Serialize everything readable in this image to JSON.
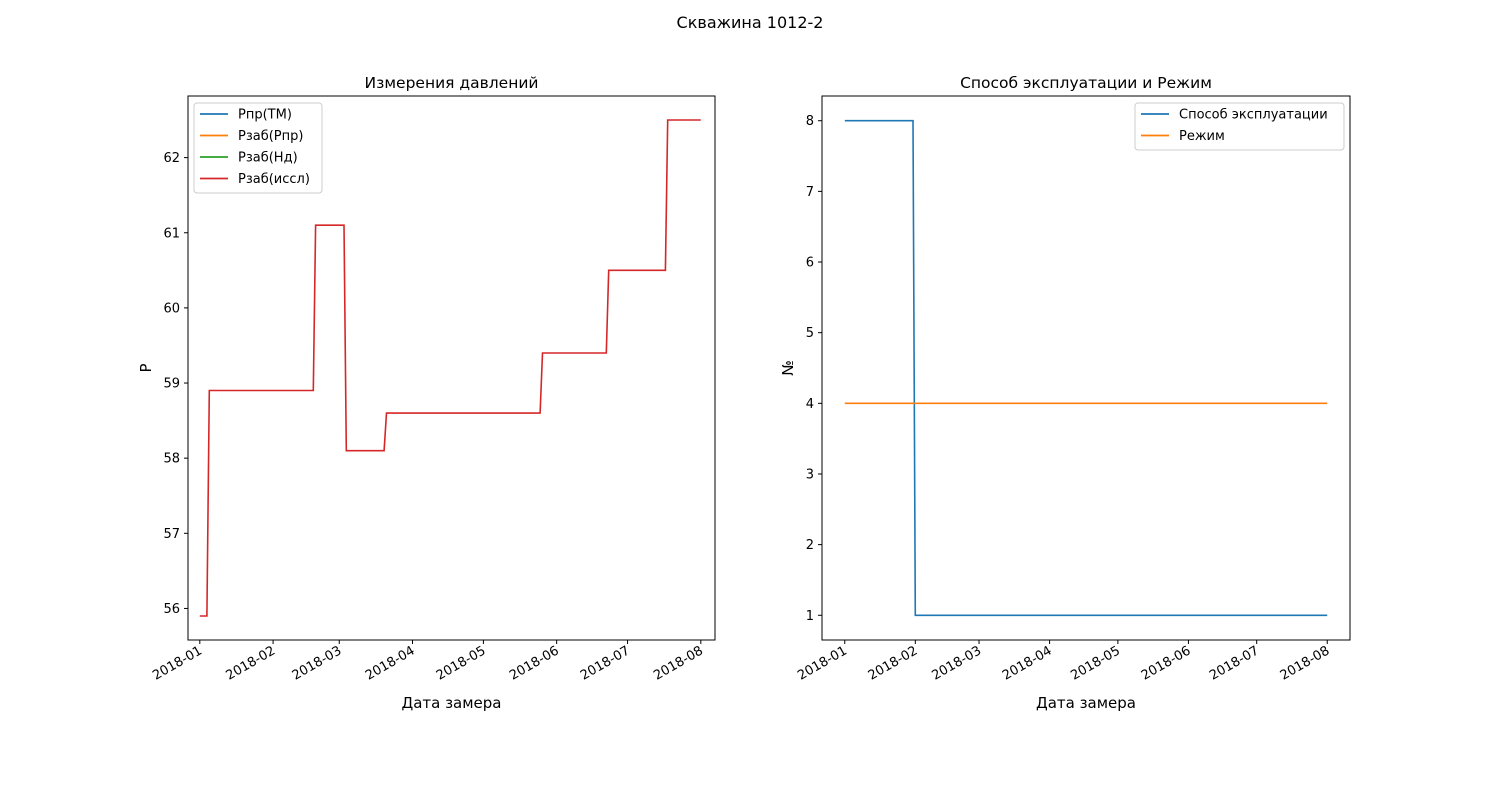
{
  "suptitle": "Скважина 1012-2",
  "chart_data": [
    {
      "type": "line",
      "title": "Измерения давлений",
      "xlabel": "Дата замера",
      "ylabel": "P",
      "x_ticks": [
        "2018-01",
        "2018-02",
        "2018-03",
        "2018-04",
        "2018-05",
        "2018-06",
        "2018-07",
        "2018-08"
      ],
      "y_ticks": [
        "56",
        "57",
        "58",
        "59",
        "60",
        "61",
        "62"
      ],
      "xlim": [
        "2017-12-27",
        "2018-08-07"
      ],
      "ylim": [
        55.58,
        62.82
      ],
      "legend_position": "upper left",
      "series": [
        {
          "name": "Pпр(ТМ)",
          "color": "#1f77b4",
          "points": []
        },
        {
          "name": "Pзаб(Pпр)",
          "color": "#ff7f0e",
          "points": []
        },
        {
          "name": "Pзаб(Нд)",
          "color": "#2ca02c",
          "points": []
        },
        {
          "name": "Pзаб(иссл)",
          "color": "#d62728",
          "points": [
            [
              "2018-01-01",
              55.9
            ],
            [
              "2018-01-04",
              55.9
            ],
            [
              "2018-01-05",
              58.9
            ],
            [
              "2018-02-18",
              58.9
            ],
            [
              "2018-02-19",
              61.1
            ],
            [
              "2018-03-03",
              61.1
            ],
            [
              "2018-03-04",
              58.1
            ],
            [
              "2018-03-20",
              58.1
            ],
            [
              "2018-03-21",
              58.6
            ],
            [
              "2018-05-25",
              58.6
            ],
            [
              "2018-05-26",
              59.4
            ],
            [
              "2018-06-22",
              59.4
            ],
            [
              "2018-06-23",
              60.5
            ],
            [
              "2018-07-17",
              60.5
            ],
            [
              "2018-07-18",
              62.5
            ],
            [
              "2018-08-01",
              62.5
            ]
          ]
        }
      ]
    },
    {
      "type": "line",
      "title": "Способ эксплуатации и Режим",
      "xlabel": "Дата замера",
      "ylabel": "№",
      "x_ticks": [
        "2018-01",
        "2018-02",
        "2018-03",
        "2018-04",
        "2018-05",
        "2018-06",
        "2018-07",
        "2018-08"
      ],
      "y_ticks": [
        "1",
        "2",
        "3",
        "4",
        "5",
        "6",
        "7",
        "8"
      ],
      "xlim": [
        "2017-12-22",
        "2018-08-11"
      ],
      "ylim": [
        0.65,
        8.35
      ],
      "legend_position": "upper right",
      "series": [
        {
          "name": "Способ эксплуатации",
          "color": "#1f77b4",
          "points": [
            [
              "2018-01-01",
              8
            ],
            [
              "2018-01-31",
              8
            ],
            [
              "2018-02-01",
              1
            ],
            [
              "2018-08-01",
              1
            ]
          ]
        },
        {
          "name": "Режим",
          "color": "#ff7f0e",
          "points": [
            [
              "2018-01-01",
              4
            ],
            [
              "2018-08-01",
              4
            ]
          ]
        }
      ]
    }
  ]
}
